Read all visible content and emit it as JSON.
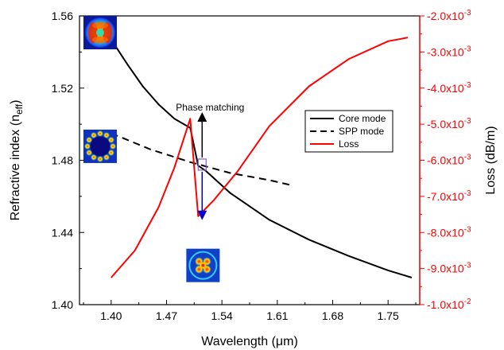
{
  "chart_data": {
    "type": "line",
    "xlabel": "Wavelength (μm)",
    "ylabel_left": "Refractive index (n",
    "ylabel_left_sub": "eff",
    "ylabel_left_close": ")",
    "ylabel_right": "Loss (dB/m)",
    "xlim": [
      1.36,
      1.79
    ],
    "ylim_left": [
      1.4,
      1.56
    ],
    "ylim_right": [
      -0.01,
      -0.002
    ],
    "x_ticks": [
      "1.40",
      "1.47",
      "1.54",
      "1.61",
      "1.68",
      "1.75"
    ],
    "x_tick_values": [
      1.4,
      1.47,
      1.54,
      1.61,
      1.68,
      1.75
    ],
    "y_left_ticks": [
      "1.40",
      "1.44",
      "1.48",
      "1.52",
      "1.56"
    ],
    "y_left_tick_values": [
      1.4,
      1.44,
      1.48,
      1.52,
      1.56
    ],
    "y_right_ticks": [
      {
        "mant": "-1.0x10",
        "exp": "-2",
        "value": -0.01
      },
      {
        "mant": "-9.0x10",
        "exp": "-3",
        "value": -0.009
      },
      {
        "mant": "-8.0x10",
        "exp": "-3",
        "value": -0.008
      },
      {
        "mant": "-7.0x10",
        "exp": "-3",
        "value": -0.007
      },
      {
        "mant": "-6.0x10",
        "exp": "-3",
        "value": -0.006
      },
      {
        "mant": "-5.0x10",
        "exp": "-3",
        "value": -0.005
      },
      {
        "mant": "-4.0x10",
        "exp": "-3",
        "value": -0.004
      },
      {
        "mant": "-3.0x10",
        "exp": "-3",
        "value": -0.003
      },
      {
        "mant": "-2.0x10",
        "exp": "-3",
        "value": -0.002
      }
    ],
    "grid": false,
    "legend_position": "upper-right",
    "annotation": "Phase matching",
    "colors": {
      "core": "#000000",
      "spp": "#000000",
      "loss": "#ff0000",
      "arrow_up": "#000000",
      "arrow_down": "#0000cc",
      "marker_box": "#8a5ad0",
      "right_axis": "#ff0000"
    },
    "series": [
      {
        "name": "Core mode",
        "axis": "left",
        "style": "solid",
        "x": [
          1.4,
          1.42,
          1.44,
          1.46,
          1.48,
          1.5,
          1.51,
          1.52,
          1.55,
          1.6,
          1.65,
          1.7,
          1.75,
          1.78
        ],
        "y": [
          1.547,
          1.5335,
          1.521,
          1.511,
          1.503,
          1.498,
          1.477,
          1.474,
          1.462,
          1.447,
          1.436,
          1.427,
          1.419,
          1.415
        ]
      },
      {
        "name": "SPP mode",
        "axis": "left",
        "style": "dashed",
        "x": [
          1.4,
          1.45,
          1.5,
          1.55,
          1.6,
          1.63
        ],
        "y": [
          1.495,
          1.486,
          1.479,
          1.473,
          1.469,
          1.466
        ]
      },
      {
        "name": "Loss",
        "axis": "right",
        "style": "solid",
        "x": [
          1.4,
          1.43,
          1.46,
          1.48,
          1.5,
          1.51,
          1.53,
          1.56,
          1.6,
          1.65,
          1.7,
          1.75,
          1.775
        ],
        "y": [
          -0.00925,
          -0.0085,
          -0.0073,
          -0.0062,
          -0.00485,
          -0.00755,
          -0.0071,
          -0.0063,
          -0.00505,
          -0.00395,
          -0.0032,
          -0.0027,
          -0.0026
        ]
      }
    ],
    "insets": [
      {
        "name": "inset-mode-top",
        "at": [
          1.365,
          1.56
        ]
      },
      {
        "name": "inset-mode-spp",
        "at": [
          1.365,
          1.497
        ]
      },
      {
        "name": "inset-mode-bottom",
        "at": [
          1.495,
          1.431
        ]
      }
    ]
  }
}
